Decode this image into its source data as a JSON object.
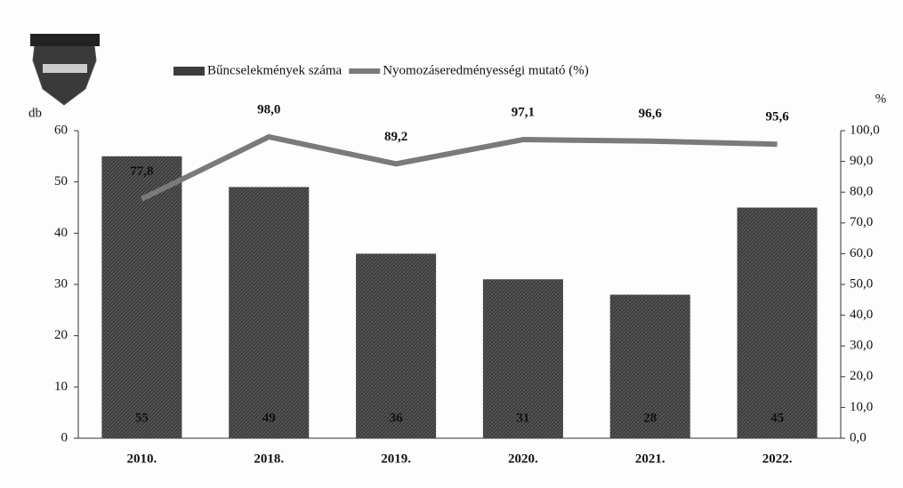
{
  "chart_data": {
    "type": "bar",
    "categories": [
      "2010.",
      "2018.",
      "2019.",
      "2020.",
      "2021.",
      "2022."
    ],
    "series": [
      {
        "name": "Bűncselekmények száma",
        "type": "bar",
        "color": "#3d3d3d",
        "values": [
          55,
          49,
          36,
          31,
          28,
          45
        ]
      },
      {
        "name": "Nyomozáseredményességi mutató (%)",
        "type": "line",
        "axis": "y2",
        "color": "#7a7a7a",
        "values": [
          77.8,
          98.0,
          89.2,
          97.1,
          96.6,
          95.6
        ],
        "value_labels": [
          "77,8",
          "98,0",
          "89,2",
          "97,1",
          "96,6",
          "95,6"
        ]
      }
    ],
    "ylabel": "db",
    "y2label": "%",
    "ylim": [
      0,
      60
    ],
    "yticks": [
      0,
      10,
      20,
      30,
      40,
      50,
      60
    ],
    "y2lim": [
      0,
      100
    ],
    "y2ticks": [
      {
        "value": 0,
        "label": "0,0"
      },
      {
        "value": 10,
        "label": "10,0"
      },
      {
        "value": 20,
        "label": "20,0"
      },
      {
        "value": 30,
        "label": "30,0"
      },
      {
        "value": 40,
        "label": "40,0"
      },
      {
        "value": 50,
        "label": "50,0"
      },
      {
        "value": 60,
        "label": "60,0"
      },
      {
        "value": 70,
        "label": "70,0"
      },
      {
        "value": 80,
        "label": "80,0"
      },
      {
        "value": 90,
        "label": "90,0"
      },
      {
        "value": 100,
        "label": "100,0"
      }
    ],
    "legend": "top"
  }
}
